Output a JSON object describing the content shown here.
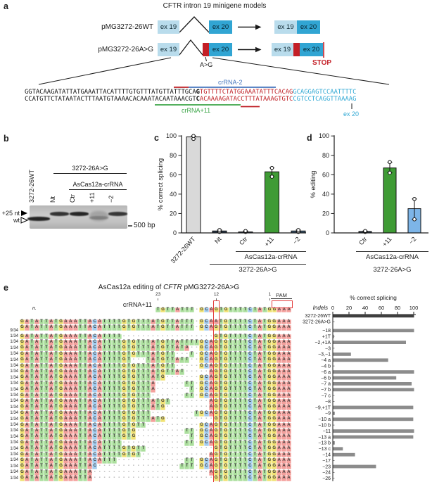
{
  "panel_labels": {
    "a": "a",
    "b": "b",
    "c": "c",
    "d": "d",
    "e": "e"
  },
  "colors": {
    "ex19": "#b9dcec",
    "ex20": "#31a5d3",
    "red": "#c41f26",
    "seq_red": "#bf2026",
    "seq_blue": "#2fa8d4",
    "crrna2_blue": "#4576be",
    "crrna11_green": "#3ba547",
    "bar_gray": "#d9d9d9",
    "bar_dark": "#2b3b4e",
    "bar_green": "#3f9b35",
    "bar_slate": "#3e5a74",
    "bar_blue": "#7db5e8",
    "echart_bar": "#8c8c8c",
    "echart_bar_dark": "#3f3f3f",
    "nt_A": "#f4a09c",
    "nt_T": "#abdf9d",
    "nt_G": "#f1e273",
    "nt_C": "#a3cdf0"
  },
  "panel_a": {
    "title": "CFTR intron 19 minigene models",
    "constructs": [
      {
        "label": "pMG3272-26WT",
        "ex19": "ex 19",
        "ex20": "ex 20"
      },
      {
        "label": "pMG3272-26A>G",
        "ex19": "ex 19",
        "ex20": "ex 20"
      }
    ],
    "mutation_label": "A>G",
    "stop_label": "STOP",
    "sequence": {
      "top": {
        "intron": "GGTACAAGATATTATGAAATTACATTTTGTGTTTATGTTATTTGCA",
        "mut": "G",
        "cryptic": "TGTTTTCTATGGAAATATTTCACAG",
        "exon": "GCAGGAGTCCAATTTTC"
      },
      "bottom": {
        "intron": "CCATGTTCTATAATACTTTAATGTAAAACACAAATACAATAAACGT",
        "mut": "C",
        "cryptic": "ACAAAAGATACCTTTATAAAGTGTC",
        "exon": "CGTCCTCAGGTTAAAAG"
      },
      "crRNA2_label": "crRNA-2",
      "crRNA11_label": "crRNA+11",
      "ex20_label": "ex 20"
    }
  },
  "panel_b": {
    "lanes": [
      "3272-26WT",
      "Nt",
      "Ctr",
      "+11",
      "−2"
    ],
    "group1": "3272-26A>G",
    "group2": "AsCas12a-crRNA",
    "marker_plus25": "+25 nt",
    "marker_wt": "wt",
    "size_marker": "500 bp",
    "bands": [
      {
        "lane": 0,
        "pos": "wt",
        "strength": 1.0
      },
      {
        "lane": 1,
        "pos": "+25",
        "strength": 0.8
      },
      {
        "lane": 2,
        "pos": "+25",
        "strength": 1.0
      },
      {
        "lane": 3,
        "pos": "smear",
        "strength": 0.3
      },
      {
        "lane": 4,
        "pos": "+25",
        "strength": 0.75
      }
    ]
  },
  "chart_data": [
    {
      "id": "c",
      "type": "bar",
      "title": "",
      "ylabel": "% correct splicing",
      "ylim": [
        0,
        100
      ],
      "yticks": [
        0,
        20,
        40,
        60,
        80,
        100
      ],
      "categories": [
        "3272-26WT",
        "Nt",
        "Ctr",
        "+11",
        "−2"
      ],
      "values": [
        99,
        2,
        1,
        63,
        2
      ],
      "points": [
        [
          97,
          100
        ],
        [
          1,
          3
        ],
        [
          1,
          2
        ],
        [
          58,
          67
        ],
        [
          1,
          3
        ]
      ],
      "bar_colors": [
        "#d9d9d9",
        "#2b3b4e",
        "#2b3b4e",
        "#3f9b35",
        "#3e5a74"
      ],
      "brackets": [
        {
          "label": "AsCas12a-crRNA",
          "from": 2,
          "to": 4,
          "line": true
        },
        {
          "label": "3272-26A>G",
          "from": 1,
          "to": 4,
          "line": true
        }
      ]
    },
    {
      "id": "d",
      "type": "bar",
      "title": "",
      "ylabel": "% editing",
      "ylim": [
        0,
        100
      ],
      "yticks": [
        0,
        20,
        40,
        60,
        80,
        100
      ],
      "categories": [
        "Ctr",
        "+11",
        "−2"
      ],
      "values": [
        1.5,
        67,
        25
      ],
      "points": [
        [
          1,
          2
        ],
        [
          62,
          73
        ],
        [
          14,
          35
        ]
      ],
      "bar_colors": [
        "#2b3b4e",
        "#3f9b35",
        "#7db5e8"
      ],
      "brackets": [
        {
          "label": "AsCas12a-crRNA",
          "from": 0,
          "to": 2,
          "line": true
        },
        {
          "label": "3272-26A>G",
          "from": 0,
          "to": 2,
          "line": false
        }
      ]
    },
    {
      "id": "e",
      "type": "bar-horizontal",
      "title": "% correct splicing",
      "indels_header": "Indels",
      "xlim": [
        0,
        100
      ],
      "xticks": [
        0,
        20,
        40,
        60,
        80,
        100
      ],
      "categories": [
        "3272-26WT",
        "3272-26A>G",
        "−18",
        "+1T",
        "−2,+1A",
        "−3",
        "−3,−1",
        "−4 a",
        "−4 b",
        "−6 a",
        "−6 b",
        "−7 a",
        "−7 b",
        "−7 c",
        "−8",
        "−9,+1T",
        "−9",
        "−10 a",
        "−10 b",
        "−11",
        "−13 a",
        "−13 b",
        "−13 c",
        "−14",
        "−17",
        "−23",
        "−24",
        "−26"
      ],
      "values": [
        100,
        0,
        100,
        1,
        90,
        0,
        22,
        68,
        0,
        100,
        78,
        97,
        100,
        0,
        0,
        99,
        2,
        99,
        0,
        100,
        99,
        2,
        12,
        27,
        0,
        53,
        0,
        0
      ]
    }
  ],
  "panel_e": {
    "title_prefix": "AsCas12a editing of ",
    "title_italic": "CFTR",
    "title_suffix": " pMG3272-26A>G",
    "crRNA_label": "crRNA+11",
    "n_header": "n.",
    "pam_label": "PAM",
    "pos_labels": [
      {
        "text": "23",
        "col": 28
      },
      {
        "text": "12",
        "col": 40
      },
      {
        "text": "1",
        "col": 51
      }
    ],
    "crRNA_row": "TGTTATTT-GCAGTGTTTTCTATGGAAA",
    "crRNA_start_col": 28,
    "mut_col": 40,
    "pam_cols": [
      52,
      55
    ],
    "rows": [
      {
        "n": "",
        "indel": "3272-26WT",
        "seq": "GATATTATGAAATTACATTTTGTGTTTATGTTATTT-GCAATGTTTTCTATGGAAA"
      },
      {
        "n": "",
        "indel": "3272-26A>G",
        "seq": "GATATTATGAAATTACATTTTGTGTTTATGTTATTT-GCAGTGTTTTCTATGGAAA"
      },
      {
        "n": "9/34",
        "indel": "−18",
        "seq": "GATATTATGAAATTACATTTT-------------------GTGTTTTCTATGGAAA"
      },
      {
        "n": "1/34",
        "indel": "+1T",
        "seq": "GATATTATGAAATTACATTTTGTGTTTATGTTATTTTGCAGTGTTTTCTATGGAAA"
      },
      {
        "n": "1/34",
        "indel": "−2,+1A",
        "seq": "GATATTATGAAATTACATTTTGTGTTTATGTTATA--GCAGTGTTTTCTATGGAAA"
      },
      {
        "n": "1/34",
        "indel": "−3",
        "seq": "GATATTATGAAATTACATTTTGTGTTTATGTT---T-GCAGTGTTTTCTATGGAAA"
      },
      {
        "n": "1/34",
        "indel": "−3,−1",
        "seq": "GATATTATGAAATTACATTTTGT---TATGTTATT--GCAGTGTTTTCTATGGAAA"
      },
      {
        "n": "1/34",
        "indel": "−4 a",
        "seq": "GATATTATGAAATTACATTTTGTGTTTATGTT-----GCAGTGTTTTCTATGGAAA"
      },
      {
        "n": "1/34",
        "indel": "−4 b",
        "seq": "GATATTATGAAATTACATTTTGTGTTTATGTTAT-----AGTGTTTTCTATGGAAA"
      },
      {
        "n": "1/34",
        "indel": "−6 a",
        "seq": "GATATTATGAAATTACATTTTGTGTTTATG-------GCAGTGTTTTCTATGGAAA"
      },
      {
        "n": "1/34",
        "indel": "−6 b",
        "seq": "GATATTATGAAATTACATTTTGTGTTTA------TT-GCAGTGTTTTCTATGGAAA"
      },
      {
        "n": "1/34",
        "indel": "−7 a",
        "seq": "GATATTATGAAATTACATTTTGTGTTTA-------T-GCAGTGTTTTCTATGGAAA"
      },
      {
        "n": "1/34",
        "indel": "−7 b",
        "seq": "GATATTATGAAATTACATTTTGTGTTT-------TT-GCAGTGTTTTCTATGGAAA"
      },
      {
        "n": "1/34",
        "indel": "−7 c",
        "seq": "GATATTATGAAATTACATTTTGTGTTTATGT--------AGTGTTTTCTATGGAAA"
      },
      {
        "n": "1/34",
        "indel": "−8",
        "seq": "GATATTATGAAATTACATTTTGTGTTTATG---------AGTGTTTTCTATGGAAA"
      },
      {
        "n": "1/34",
        "indel": "−9,+1T",
        "seq": "GATATTATGAAATTACATTTTGTGTTT---------TGCAGTGTTTTCTATGGAAA"
      },
      {
        "n": "1/34",
        "indel": "−9",
        "seq": "GATATTATGAAATTACATTTTGTGTTTATG----------GTGTTTTCTATGGAAA"
      },
      {
        "n": "1/34",
        "indel": "−10 a",
        "seq": "GATATTATGAAATTACATTTTGTGTT-----------GCAGTGTTTTCTATGGAAA"
      },
      {
        "n": "1/34",
        "indel": "−10 b",
        "seq": "GATATTATGAAATTACATTTTGTG----------TT-GCAGTGTTTTCTATGGAAA"
      },
      {
        "n": "1/34",
        "indel": "−11",
        "seq": "GATATTATGAAATTACATTTTGTG-----------T-GCAGTGTTTTCTATGGAAA"
      },
      {
        "n": "1/34",
        "indel": "−13 a",
        "seq": "GATATTATGAAATTACATTTT-------------TT-GCAGTGTTTTCTATGGAAA"
      },
      {
        "n": "1/34",
        "indel": "−13 b",
        "seq": "GATATTATGAAATTACATTTTGTGTT--------------GTGTTTTCTATGGAAA"
      },
      {
        "n": "1/34",
        "indel": "−13 c",
        "seq": "GATATTATGAAATTACATTTTGTGT--------------AGTGTTTTCTATGGAAA"
      },
      {
        "n": "1/34",
        "indel": "−14",
        "seq": "GATATTATGAAATTACATTT--------------TT-GCAGTGTTTTCTATGGAAA"
      },
      {
        "n": "1/34",
        "indel": "−17",
        "seq": "GATATTATGAAATTAC-----------------TTT-GCAGTGTTTTCTATGGAAA"
      },
      {
        "n": "1/34",
        "indel": "−23",
        "seq": "GATATTATGAAATTA------------------------AGTGTTTTCTATGGAAA"
      },
      {
        "n": "1/34",
        "indel": "−24",
        "seq": "GATATTATGAAATTA-------------------------GTGTTTTCTATGGAAA"
      },
      {
        "n": "1/34",
        "indel": "−26",
        "seq": "GATATTATGAAATTACATTTTGTG---------------------------GGAAA"
      }
    ]
  }
}
